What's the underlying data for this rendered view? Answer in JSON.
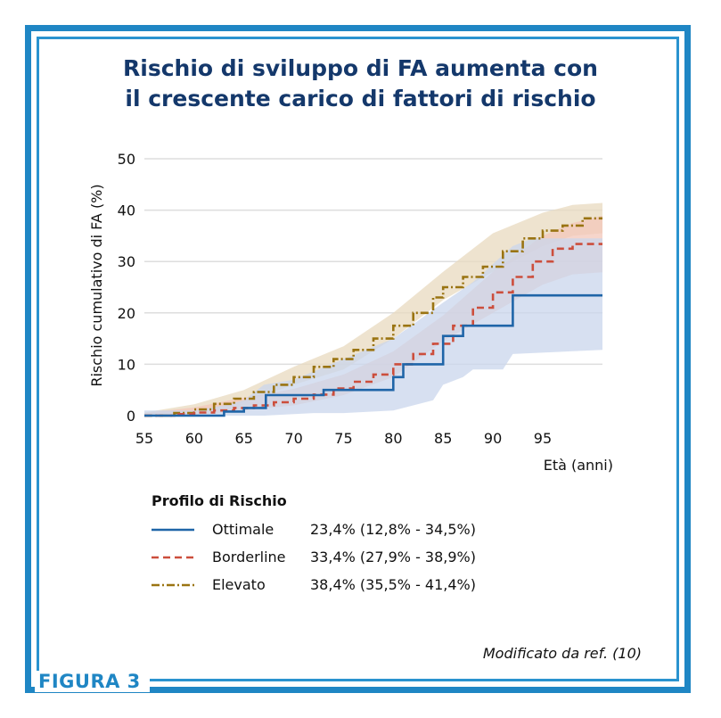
{
  "figure_label": "FIGURA 3",
  "source_note": "Modificato da ref. (10)",
  "colors": {
    "frame": "#1f86c4",
    "title": "#14386b",
    "ottimale": "#1f65a8",
    "borderline": "#cc4e3c",
    "elevato": "#9a7412",
    "ottimale_band": "#c9d5ec",
    "borderline_band": "#f3c7b9",
    "elevato_band": "#e8d9bf"
  },
  "legend": {
    "title": "Profilo di Rischio",
    "items": [
      {
        "name": "Ottimale",
        "value": "23,4% (12,8% - 34,5%)"
      },
      {
        "name": "Borderline",
        "value": "33,4% (27,9% - 38,9%)"
      },
      {
        "name": "Elevato",
        "value": "38,4% (35,5% - 41,4%)"
      }
    ]
  },
  "chart_data": {
    "type": "line",
    "title": [
      "Rischio di sviluppo di FA aumenta con",
      "il crescente carico di fattori di rischio"
    ],
    "xlabel": "Età (anni)",
    "ylabel": "Rischio cumulativo di FA (%)",
    "xlim": [
      55,
      101
    ],
    "ylim": [
      0,
      50
    ],
    "x_ticks": [
      55,
      60,
      65,
      70,
      75,
      80,
      85,
      90,
      95
    ],
    "y_ticks": [
      0,
      10,
      20,
      30,
      40,
      50
    ],
    "grid": "horizontal",
    "series": [
      {
        "name": "Ottimale",
        "style": "solid",
        "step": true,
        "points": [
          [
            55,
            0
          ],
          [
            60,
            0
          ],
          [
            63,
            0.8
          ],
          [
            65,
            1.5
          ],
          [
            67.2,
            4
          ],
          [
            72.5,
            4
          ],
          [
            73,
            5
          ],
          [
            80,
            5
          ],
          [
            80,
            7.5
          ],
          [
            81,
            7.5
          ],
          [
            81,
            10
          ],
          [
            85,
            10
          ],
          [
            85,
            15.5
          ],
          [
            87,
            15.5
          ],
          [
            87,
            17.5
          ],
          [
            92,
            17.5
          ],
          [
            92,
            23.4
          ],
          [
            101,
            23.4
          ]
        ],
        "upper": [
          [
            55,
            1
          ],
          [
            60,
            1
          ],
          [
            63,
            2
          ],
          [
            65,
            3
          ],
          [
            67,
            6
          ],
          [
            70,
            7
          ],
          [
            75,
            11
          ],
          [
            80,
            15
          ],
          [
            85,
            22
          ],
          [
            88,
            26
          ],
          [
            92,
            33
          ],
          [
            94,
            34.5
          ],
          [
            101,
            34.5
          ]
        ],
        "lower": [
          [
            55,
            0
          ],
          [
            60,
            0
          ],
          [
            67,
            0
          ],
          [
            72,
            0.5
          ],
          [
            75,
            0.5
          ],
          [
            80,
            1
          ],
          [
            84,
            3
          ],
          [
            85,
            6
          ],
          [
            87,
            7.5
          ],
          [
            88,
            9
          ],
          [
            91,
            9
          ],
          [
            92,
            12
          ],
          [
            101,
            12.8
          ]
        ]
      },
      {
        "name": "Borderline",
        "style": "dashed",
        "step": true,
        "points": [
          [
            55,
            0
          ],
          [
            58,
            0.3
          ],
          [
            60,
            0.6
          ],
          [
            62,
            1
          ],
          [
            64,
            1.5
          ],
          [
            66,
            2
          ],
          [
            68,
            2.6
          ],
          [
            70,
            3.3
          ],
          [
            72,
            4.1
          ],
          [
            74,
            5.3
          ],
          [
            76,
            6.6
          ],
          [
            78,
            8
          ],
          [
            80,
            10
          ],
          [
            82,
            12
          ],
          [
            84,
            14
          ],
          [
            86,
            17.5
          ],
          [
            88,
            21
          ],
          [
            90,
            24
          ],
          [
            92,
            27
          ],
          [
            94,
            30
          ],
          [
            96,
            32.5
          ],
          [
            98,
            33.4
          ],
          [
            101,
            33.4
          ]
        ],
        "upper": [
          [
            55,
            0.5
          ],
          [
            60,
            1.6
          ],
          [
            65,
            3.5
          ],
          [
            70,
            5.2
          ],
          [
            75,
            8
          ],
          [
            80,
            12.5
          ],
          [
            85,
            19.5
          ],
          [
            90,
            28
          ],
          [
            95,
            35
          ],
          [
            98,
            37.5
          ],
          [
            101,
            38.9
          ]
        ],
        "lower": [
          [
            55,
            0
          ],
          [
            60,
            0
          ],
          [
            65,
            1
          ],
          [
            70,
            2
          ],
          [
            75,
            4
          ],
          [
            80,
            7.5
          ],
          [
            85,
            14.5
          ],
          [
            90,
            20
          ],
          [
            95,
            25.5
          ],
          [
            98,
            27.5
          ],
          [
            101,
            27.9
          ]
        ]
      },
      {
        "name": "Elevato",
        "style": "dash-dot",
        "step": true,
        "points": [
          [
            55,
            0
          ],
          [
            58,
            0.5
          ],
          [
            60,
            1.2
          ],
          [
            62,
            2.3
          ],
          [
            64,
            3.3
          ],
          [
            66,
            4.6
          ],
          [
            68,
            6
          ],
          [
            70,
            7.5
          ],
          [
            72,
            9.5
          ],
          [
            74,
            11
          ],
          [
            76,
            12.8
          ],
          [
            78,
            15
          ],
          [
            80,
            17.5
          ],
          [
            82,
            20
          ],
          [
            84,
            23
          ],
          [
            85,
            25
          ],
          [
            87,
            27
          ],
          [
            89,
            29
          ],
          [
            91,
            32
          ],
          [
            93,
            34.5
          ],
          [
            95,
            36
          ],
          [
            97,
            37
          ],
          [
            99,
            38.4
          ],
          [
            101,
            38.4
          ]
        ],
        "upper": [
          [
            55,
            0.6
          ],
          [
            60,
            2.2
          ],
          [
            65,
            5
          ],
          [
            70,
            9.5
          ],
          [
            75,
            13.5
          ],
          [
            80,
            20
          ],
          [
            85,
            28
          ],
          [
            90,
            35.5
          ],
          [
            95,
            39.5
          ],
          [
            98,
            41
          ],
          [
            101,
            41.4
          ]
        ],
        "lower": [
          [
            55,
            0
          ],
          [
            60,
            0.6
          ],
          [
            65,
            2.6
          ],
          [
            70,
            6
          ],
          [
            75,
            9
          ],
          [
            80,
            15
          ],
          [
            85,
            22.5
          ],
          [
            90,
            28
          ],
          [
            95,
            33
          ],
          [
            98,
            35
          ],
          [
            101,
            35.5
          ]
        ]
      }
    ]
  }
}
